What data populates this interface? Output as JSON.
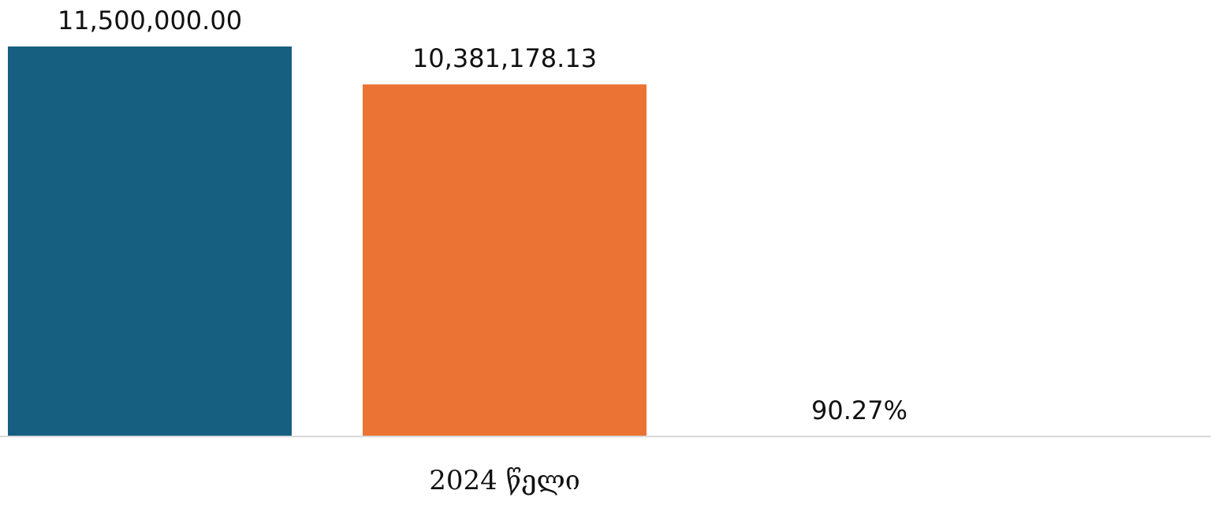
{
  "chart_data": {
    "type": "bar",
    "categories": [
      "2024 წელი"
    ],
    "series": [
      {
        "values": [
          11500000.0
        ],
        "labels": [
          "11,500,000.00"
        ],
        "color": "#175F80"
      },
      {
        "values": [
          10381178.13
        ],
        "labels": [
          "10,381,178.13"
        ],
        "color": "#EB7334"
      },
      {
        "values": [
          90.27
        ],
        "labels": [
          "90.27%"
        ],
        "color": "#ffffff"
      }
    ],
    "ylim": [
      0,
      11500000
    ],
    "grid": false,
    "axis_color": "#d9d9d9"
  }
}
